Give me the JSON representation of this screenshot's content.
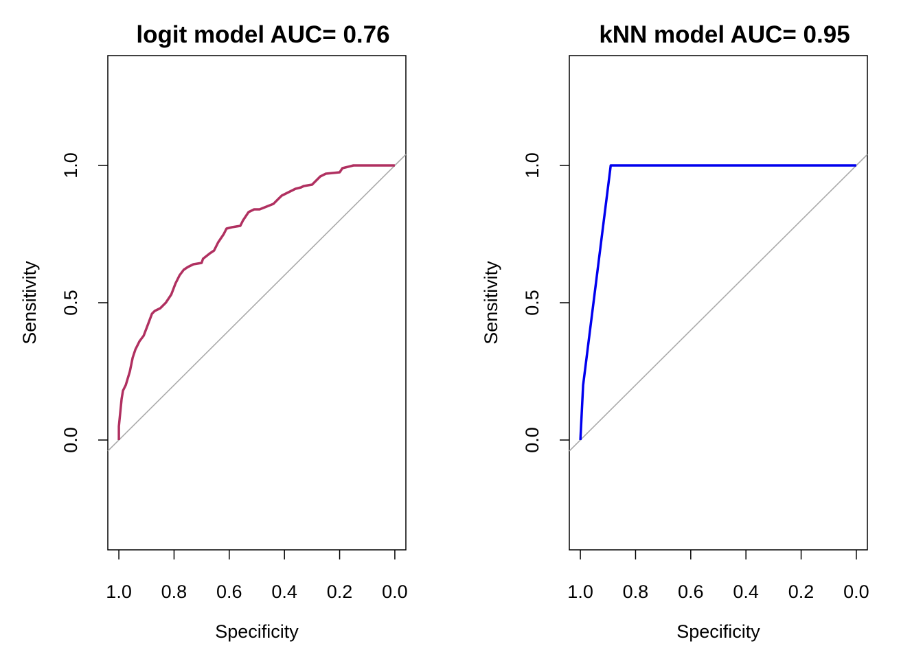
{
  "chart_data": [
    {
      "type": "line",
      "title": "logit model AUC=  0.76",
      "xlabel": "Specificity",
      "ylabel": "Sensitivity",
      "x_reversed": true,
      "xlim": [
        1.04,
        -0.04
      ],
      "ylim": [
        -0.4,
        1.4
      ],
      "x_ticks": [
        "1.0",
        "0.8",
        "0.6",
        "0.4",
        "0.2",
        "0.0"
      ],
      "y_ticks": [
        "0.0",
        "0.5",
        "1.0"
      ],
      "reference_line": "identity (gray diagonal)",
      "series": [
        {
          "color": "#b03060",
          "specificity": [
            1.0,
            1.0,
            0.995,
            0.99,
            0.985,
            0.975,
            0.96,
            0.95,
            0.94,
            0.925,
            0.91,
            0.895,
            0.88,
            0.87,
            0.85,
            0.83,
            0.81,
            0.795,
            0.78,
            0.765,
            0.75,
            0.73,
            0.7,
            0.695,
            0.67,
            0.655,
            0.64,
            0.62,
            0.61,
            0.59,
            0.56,
            0.55,
            0.53,
            0.51,
            0.49,
            0.44,
            0.42,
            0.41,
            0.39,
            0.36,
            0.34,
            0.33,
            0.3,
            0.28,
            0.27,
            0.25,
            0.2,
            0.19,
            0.15,
            0.1,
            0.0
          ],
          "sensitivity": [
            0.0,
            0.05,
            0.1,
            0.15,
            0.18,
            0.2,
            0.25,
            0.3,
            0.33,
            0.36,
            0.38,
            0.42,
            0.46,
            0.47,
            0.48,
            0.5,
            0.53,
            0.57,
            0.6,
            0.62,
            0.63,
            0.64,
            0.645,
            0.66,
            0.68,
            0.69,
            0.72,
            0.75,
            0.77,
            0.775,
            0.78,
            0.8,
            0.83,
            0.84,
            0.84,
            0.86,
            0.88,
            0.89,
            0.9,
            0.915,
            0.92,
            0.925,
            0.93,
            0.95,
            0.96,
            0.97,
            0.975,
            0.99,
            1.0,
            1.0,
            1.0
          ]
        }
      ]
    },
    {
      "type": "line",
      "title": "kNN model AUC=  0.95",
      "xlabel": "Specificity",
      "ylabel": "Sensitivity",
      "x_reversed": true,
      "xlim": [
        1.04,
        -0.04
      ],
      "ylim": [
        -0.4,
        1.4
      ],
      "x_ticks": [
        "1.0",
        "0.8",
        "0.6",
        "0.4",
        "0.2",
        "0.0"
      ],
      "y_ticks": [
        "0.0",
        "0.5",
        "1.0"
      ],
      "reference_line": "identity (gray diagonal)",
      "series": [
        {
          "color": "#0000ee",
          "specificity": [
            1.0,
            0.99,
            0.89,
            0.0
          ],
          "sensitivity": [
            0.0,
            0.2,
            1.0,
            1.0
          ]
        }
      ]
    }
  ]
}
